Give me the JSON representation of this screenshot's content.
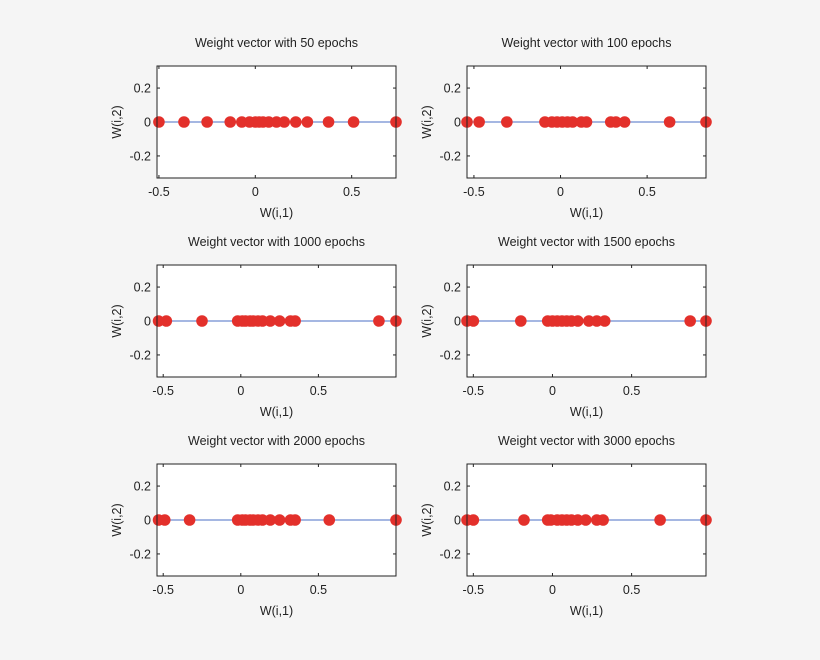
{
  "chart_data": [
    {
      "type": "line",
      "title": "Weight vector with 50 epochs",
      "x_label": "W(i,1)",
      "y_label": "W(i,2)",
      "line_color": "#4b6fc4",
      "marker_color": "#e3302b",
      "x": [
        -0.5,
        -0.37,
        -0.25,
        -0.13,
        -0.07,
        -0.03,
        0,
        0.02,
        0.04,
        0.07,
        0.11,
        0.15,
        0.21,
        0.27,
        0.38,
        0.51,
        0.73
      ],
      "values": [
        0,
        0,
        0,
        0,
        0,
        0,
        0,
        0,
        0,
        0,
        0,
        0,
        0,
        0,
        0,
        0,
        0
      ],
      "xlim": [
        -0.51,
        0.73
      ],
      "xticks": [
        -0.5,
        0,
        0.5
      ],
      "ylim": [
        -0.33,
        0.33
      ],
      "yticks": [
        -0.2,
        0,
        0.2
      ]
    },
    {
      "type": "line",
      "title": "Weight vector with 100 epochs",
      "x_label": "W(i,1)",
      "y_label": "W(i,2)",
      "line_color": "#4b6fc4",
      "marker_color": "#e3302b",
      "x": [
        -0.54,
        -0.47,
        -0.31,
        -0.09,
        -0.05,
        -0.02,
        0.01,
        0.04,
        0.07,
        0.12,
        0.15,
        0.29,
        0.32,
        0.37,
        0.63,
        0.84
      ],
      "values": [
        0,
        0,
        0,
        0,
        0,
        0,
        0,
        0,
        0,
        0,
        0,
        0,
        0,
        0,
        0,
        0
      ],
      "xlim": [
        -0.54,
        0.84
      ],
      "xticks": [
        -0.5,
        0,
        0.5
      ],
      "ylim": [
        -0.33,
        0.33
      ],
      "yticks": [
        -0.2,
        0,
        0.2
      ]
    },
    {
      "type": "line",
      "title": "Weight vector with 1000 epochs",
      "x_label": "W(i,1)",
      "y_label": "W(i,2)",
      "line_color": "#4b6fc4",
      "marker_color": "#e3302b",
      "x": [
        -0.53,
        -0.48,
        -0.25,
        -0.02,
        0.01,
        0.03,
        0.06,
        0.08,
        0.11,
        0.14,
        0.19,
        0.25,
        0.32,
        0.35,
        0.89,
        1.0
      ],
      "values": [
        0,
        0,
        0,
        0,
        0,
        0,
        0,
        0,
        0,
        0,
        0,
        0,
        0,
        0,
        0,
        0
      ],
      "xlim": [
        -0.54,
        1.0
      ],
      "xticks": [
        -0.5,
        0,
        0.5
      ],
      "ylim": [
        -0.33,
        0.33
      ],
      "yticks": [
        -0.2,
        0,
        0.2
      ]
    },
    {
      "type": "line",
      "title": "Weight vector with 1500 epochs",
      "x_label": "W(i,1)",
      "y_label": "W(i,2)",
      "line_color": "#4b6fc4",
      "marker_color": "#e3302b",
      "x": [
        -0.54,
        -0.5,
        -0.2,
        -0.03,
        0,
        0.03,
        0.06,
        0.09,
        0.12,
        0.16,
        0.23,
        0.28,
        0.33,
        0.87,
        0.97
      ],
      "values": [
        0,
        0,
        0,
        0,
        0,
        0,
        0,
        0,
        0,
        0,
        0,
        0,
        0,
        0,
        0
      ],
      "xlim": [
        -0.54,
        0.97
      ],
      "xticks": [
        -0.5,
        0,
        0.5
      ],
      "ylim": [
        -0.33,
        0.33
      ],
      "yticks": [
        -0.2,
        0,
        0.2
      ]
    },
    {
      "type": "line",
      "title": "Weight vector with 2000 epochs",
      "x_label": "W(i,1)",
      "y_label": "W(i,2)",
      "line_color": "#4b6fc4",
      "marker_color": "#e3302b",
      "x": [
        -0.53,
        -0.49,
        -0.33,
        -0.02,
        0.01,
        0.03,
        0.06,
        0.08,
        0.11,
        0.14,
        0.19,
        0.25,
        0.32,
        0.35,
        0.57,
        1.0
      ],
      "values": [
        0,
        0,
        0,
        0,
        0,
        0,
        0,
        0,
        0,
        0,
        0,
        0,
        0,
        0,
        0,
        0
      ],
      "xlim": [
        -0.54,
        1.0
      ],
      "xticks": [
        -0.5,
        0,
        0.5
      ],
      "ylim": [
        -0.33,
        0.33
      ],
      "yticks": [
        -0.2,
        0,
        0.2
      ]
    },
    {
      "type": "line",
      "title": "Weight vector with 3000 epochs",
      "x_label": "W(i,1)",
      "y_label": "W(i,2)",
      "line_color": "#4b6fc4",
      "marker_color": "#e3302b",
      "x": [
        -0.54,
        -0.5,
        -0.18,
        -0.03,
        -0.01,
        0.03,
        0.06,
        0.09,
        0.12,
        0.16,
        0.21,
        0.28,
        0.32,
        0.68,
        0.97
      ],
      "values": [
        0,
        0,
        0,
        0,
        0,
        0,
        0,
        0,
        0,
        0,
        0,
        0,
        0,
        0,
        0
      ],
      "xlim": [
        -0.54,
        0.97
      ],
      "xticks": [
        -0.5,
        0,
        0.5
      ],
      "ylim": [
        -0.33,
        0.33
      ],
      "yticks": [
        -0.2,
        0,
        0.2
      ]
    }
  ]
}
